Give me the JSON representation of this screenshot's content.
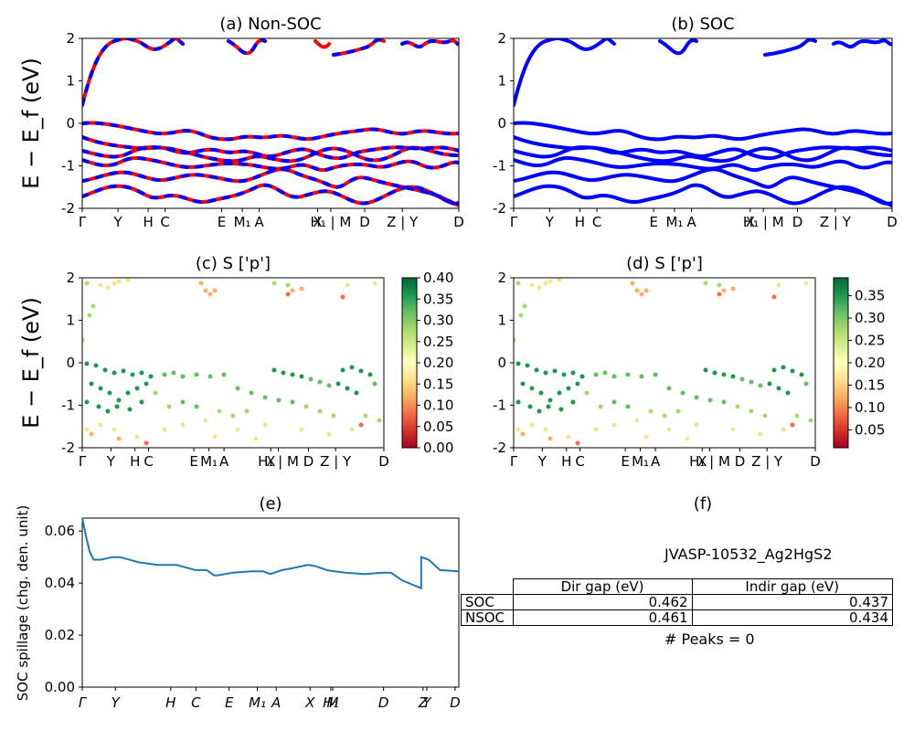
{
  "figure": {
    "ylabel_band": "E − E_f (eV)",
    "panel_a_title": "(a) Non-SOC",
    "panel_b_title": "(b) SOC",
    "panel_c_title": "(c)  S ['p']",
    "panel_d_title": "(d) S ['p']",
    "panel_e_title": "(e)",
    "panel_f_title": "(f)",
    "band_kpath_labels": [
      "Γ",
      "Y",
      "H",
      "C",
      "E",
      "M₁",
      "A",
      "X",
      "H₁ | M",
      "D",
      "Z | Y",
      "D"
    ],
    "band_y_ticks": [
      "-2",
      "-1",
      "0",
      "1",
      "2"
    ],
    "colorbar_c_ticks": [
      "0.00",
      "0.05",
      "0.10",
      "0.15",
      "0.20",
      "0.25",
      "0.30",
      "0.35",
      "0.40"
    ],
    "colorbar_d_ticks": [
      "0.05",
      "0.10",
      "0.15",
      "0.20",
      "0.25",
      "0.30",
      "0.35"
    ],
    "spillage_ylabel": "SOC spillage (chg. den. unit)",
    "spillage_y_ticks": [
      "0.00",
      "0.02",
      "0.04",
      "0.06"
    ],
    "spillage_x_ticks": [
      "Γ",
      "Y",
      "H",
      "C",
      "E",
      "M₁",
      "A",
      "X",
      "H₁",
      "M",
      "D",
      "Z",
      "Y",
      "D"
    ]
  },
  "table": {
    "material": "JVASP-10532_Ag2HgS2",
    "header": [
      "",
      "Dir gap (eV)",
      "Indir gap (eV)"
    ],
    "rows": [
      {
        "label": "SOC",
        "dir": "0.462",
        "indir": "0.437"
      },
      {
        "label": "NSOC",
        "dir": "0.461",
        "indir": "0.434"
      }
    ],
    "peaks_text": "# Peaks = 0"
  },
  "colors": {
    "nonsoc_red": "#ff0000",
    "soc_blue": "#0000ff",
    "spillage_line": "#1f77b4"
  },
  "chart_data": [
    {
      "type": "line",
      "title": "(a) Non-SOC",
      "ylabel": "E − E_f (eV)",
      "ylim": [
        -2,
        2
      ],
      "x_labels": [
        "Γ",
        "Y",
        "H",
        "C",
        "E",
        "M₁",
        "A",
        "X",
        "H₁ | M",
        "D",
        "Z | Y",
        "D"
      ],
      "series": [
        {
          "values": [
            0.45,
            1.8,
            2.0
          ]
        },
        {
          "values": [
            -0.1,
            -0.2,
            -0.3,
            -0.25
          ]
        },
        {
          "values": [
            -0.5,
            -0.7,
            -0.6,
            -0.8
          ]
        },
        {
          "values": [
            -1.2,
            -0.9,
            -1.1,
            -1.0
          ]
        },
        {
          "values": [
            -1.6,
            -1.4,
            -1.5,
            -1.7
          ]
        }
      ]
    },
    {
      "type": "line",
      "title": "(b) SOC",
      "ylabel": "",
      "ylim": [
        -2,
        2
      ],
      "x_labels": [
        "Γ",
        "Y",
        "H",
        "C",
        "E",
        "M₁",
        "A",
        "X",
        "H₁ | M",
        "D",
        "Z | Y",
        "D"
      ],
      "series": [
        {
          "values": [
            0.45,
            1.8,
            2.0
          ]
        },
        {
          "values": [
            -0.1,
            -0.2,
            -0.3,
            -0.25
          ]
        },
        {
          "values": [
            -0.5,
            -0.7,
            -0.6,
            -0.8
          ]
        },
        {
          "values": [
            -1.2,
            -0.9,
            -1.1,
            -1.0
          ]
        },
        {
          "values": [
            -1.6,
            -1.4,
            -1.5,
            -1.7
          ]
        }
      ]
    },
    {
      "type": "scatter",
      "title": "(c)  S ['p']",
      "ylim": [
        -2,
        2
      ],
      "colorbar_range": [
        0.0,
        0.4
      ],
      "x_labels": [
        "Γ",
        "Y",
        "H",
        "C",
        "E",
        "M₁",
        "A",
        "X",
        "H₁ | M",
        "D",
        "Z | Y",
        "D"
      ]
    },
    {
      "type": "scatter",
      "title": "(d) S ['p']",
      "ylim": [
        -2,
        2
      ],
      "colorbar_range": [
        0.01,
        0.39
      ],
      "x_labels": [
        "Γ",
        "Y",
        "H",
        "C",
        "E",
        "M₁",
        "A",
        "X",
        "H₁ | M",
        "D",
        "Z | Y",
        "D"
      ]
    },
    {
      "type": "line",
      "title": "(e)",
      "ylabel": "SOC spillage (chg. den. unit)",
      "ylim": [
        0,
        0.065
      ],
      "x_labels": [
        "Γ",
        "Y",
        "H",
        "C",
        "E",
        "M₁",
        "A",
        "X",
        "H₁",
        "M",
        "D",
        "Z",
        "Y",
        "D"
      ],
      "x": [
        0,
        0.01,
        0.02,
        0.03,
        0.05,
        0.08,
        0.1,
        0.15,
        0.2,
        0.25,
        0.3,
        0.33,
        0.35,
        0.36,
        0.38,
        0.4,
        0.45,
        0.48,
        0.5,
        0.53,
        0.55,
        0.6,
        0.62,
        0.65,
        0.66,
        0.7,
        0.75,
        0.8,
        0.82,
        0.85,
        0.9,
        0.9,
        0.92,
        0.95,
        1.0
      ],
      "values": [
        0.065,
        0.058,
        0.052,
        0.049,
        0.049,
        0.05,
        0.05,
        0.048,
        0.047,
        0.047,
        0.045,
        0.045,
        0.043,
        0.043,
        0.0435,
        0.044,
        0.0445,
        0.0445,
        0.0435,
        0.045,
        0.0455,
        0.047,
        0.0465,
        0.045,
        0.0447,
        0.044,
        0.0435,
        0.044,
        0.044,
        0.041,
        0.038,
        0.05,
        0.049,
        0.045,
        0.0445
      ]
    }
  ]
}
